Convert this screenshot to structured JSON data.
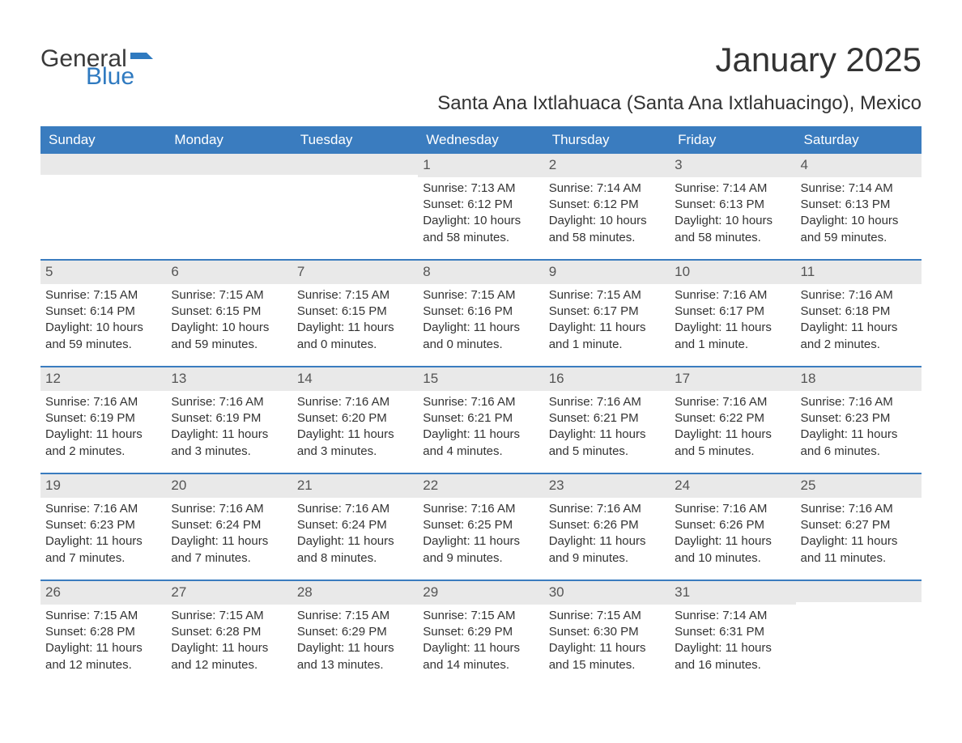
{
  "logo": {
    "general": "General",
    "blue": "Blue"
  },
  "title": "January 2025",
  "subtitle": "Santa Ana Ixtlahuaca (Santa Ana Ixtlahuacingo), Mexico",
  "colors": {
    "header_bg": "#3a7cbf",
    "header_text": "#ffffff",
    "daynum_bg": "#e9e9e9",
    "text": "#333333",
    "logo_blue": "#2f7ac0",
    "week_border": "#3a7cbf",
    "background": "#ffffff"
  },
  "typography": {
    "title_fontsize": 42,
    "subtitle_fontsize": 24,
    "weekday_fontsize": 17,
    "daynum_fontsize": 17,
    "body_fontsize": 15
  },
  "weekdays": [
    "Sunday",
    "Monday",
    "Tuesday",
    "Wednesday",
    "Thursday",
    "Friday",
    "Saturday"
  ],
  "weeks": [
    [
      {
        "n": "",
        "sunrise": "",
        "sunset": "",
        "daylight1": "",
        "daylight2": ""
      },
      {
        "n": "",
        "sunrise": "",
        "sunset": "",
        "daylight1": "",
        "daylight2": ""
      },
      {
        "n": "",
        "sunrise": "",
        "sunset": "",
        "daylight1": "",
        "daylight2": ""
      },
      {
        "n": "1",
        "sunrise": "Sunrise: 7:13 AM",
        "sunset": "Sunset: 6:12 PM",
        "daylight1": "Daylight: 10 hours",
        "daylight2": "and 58 minutes."
      },
      {
        "n": "2",
        "sunrise": "Sunrise: 7:14 AM",
        "sunset": "Sunset: 6:12 PM",
        "daylight1": "Daylight: 10 hours",
        "daylight2": "and 58 minutes."
      },
      {
        "n": "3",
        "sunrise": "Sunrise: 7:14 AM",
        "sunset": "Sunset: 6:13 PM",
        "daylight1": "Daylight: 10 hours",
        "daylight2": "and 58 minutes."
      },
      {
        "n": "4",
        "sunrise": "Sunrise: 7:14 AM",
        "sunset": "Sunset: 6:13 PM",
        "daylight1": "Daylight: 10 hours",
        "daylight2": "and 59 minutes."
      }
    ],
    [
      {
        "n": "5",
        "sunrise": "Sunrise: 7:15 AM",
        "sunset": "Sunset: 6:14 PM",
        "daylight1": "Daylight: 10 hours",
        "daylight2": "and 59 minutes."
      },
      {
        "n": "6",
        "sunrise": "Sunrise: 7:15 AM",
        "sunset": "Sunset: 6:15 PM",
        "daylight1": "Daylight: 10 hours",
        "daylight2": "and 59 minutes."
      },
      {
        "n": "7",
        "sunrise": "Sunrise: 7:15 AM",
        "sunset": "Sunset: 6:15 PM",
        "daylight1": "Daylight: 11 hours",
        "daylight2": "and 0 minutes."
      },
      {
        "n": "8",
        "sunrise": "Sunrise: 7:15 AM",
        "sunset": "Sunset: 6:16 PM",
        "daylight1": "Daylight: 11 hours",
        "daylight2": "and 0 minutes."
      },
      {
        "n": "9",
        "sunrise": "Sunrise: 7:15 AM",
        "sunset": "Sunset: 6:17 PM",
        "daylight1": "Daylight: 11 hours",
        "daylight2": "and 1 minute."
      },
      {
        "n": "10",
        "sunrise": "Sunrise: 7:16 AM",
        "sunset": "Sunset: 6:17 PM",
        "daylight1": "Daylight: 11 hours",
        "daylight2": "and 1 minute."
      },
      {
        "n": "11",
        "sunrise": "Sunrise: 7:16 AM",
        "sunset": "Sunset: 6:18 PM",
        "daylight1": "Daylight: 11 hours",
        "daylight2": "and 2 minutes."
      }
    ],
    [
      {
        "n": "12",
        "sunrise": "Sunrise: 7:16 AM",
        "sunset": "Sunset: 6:19 PM",
        "daylight1": "Daylight: 11 hours",
        "daylight2": "and 2 minutes."
      },
      {
        "n": "13",
        "sunrise": "Sunrise: 7:16 AM",
        "sunset": "Sunset: 6:19 PM",
        "daylight1": "Daylight: 11 hours",
        "daylight2": "and 3 minutes."
      },
      {
        "n": "14",
        "sunrise": "Sunrise: 7:16 AM",
        "sunset": "Sunset: 6:20 PM",
        "daylight1": "Daylight: 11 hours",
        "daylight2": "and 3 minutes."
      },
      {
        "n": "15",
        "sunrise": "Sunrise: 7:16 AM",
        "sunset": "Sunset: 6:21 PM",
        "daylight1": "Daylight: 11 hours",
        "daylight2": "and 4 minutes."
      },
      {
        "n": "16",
        "sunrise": "Sunrise: 7:16 AM",
        "sunset": "Sunset: 6:21 PM",
        "daylight1": "Daylight: 11 hours",
        "daylight2": "and 5 minutes."
      },
      {
        "n": "17",
        "sunrise": "Sunrise: 7:16 AM",
        "sunset": "Sunset: 6:22 PM",
        "daylight1": "Daylight: 11 hours",
        "daylight2": "and 5 minutes."
      },
      {
        "n": "18",
        "sunrise": "Sunrise: 7:16 AM",
        "sunset": "Sunset: 6:23 PM",
        "daylight1": "Daylight: 11 hours",
        "daylight2": "and 6 minutes."
      }
    ],
    [
      {
        "n": "19",
        "sunrise": "Sunrise: 7:16 AM",
        "sunset": "Sunset: 6:23 PM",
        "daylight1": "Daylight: 11 hours",
        "daylight2": "and 7 minutes."
      },
      {
        "n": "20",
        "sunrise": "Sunrise: 7:16 AM",
        "sunset": "Sunset: 6:24 PM",
        "daylight1": "Daylight: 11 hours",
        "daylight2": "and 7 minutes."
      },
      {
        "n": "21",
        "sunrise": "Sunrise: 7:16 AM",
        "sunset": "Sunset: 6:24 PM",
        "daylight1": "Daylight: 11 hours",
        "daylight2": "and 8 minutes."
      },
      {
        "n": "22",
        "sunrise": "Sunrise: 7:16 AM",
        "sunset": "Sunset: 6:25 PM",
        "daylight1": "Daylight: 11 hours",
        "daylight2": "and 9 minutes."
      },
      {
        "n": "23",
        "sunrise": "Sunrise: 7:16 AM",
        "sunset": "Sunset: 6:26 PM",
        "daylight1": "Daylight: 11 hours",
        "daylight2": "and 9 minutes."
      },
      {
        "n": "24",
        "sunrise": "Sunrise: 7:16 AM",
        "sunset": "Sunset: 6:26 PM",
        "daylight1": "Daylight: 11 hours",
        "daylight2": "and 10 minutes."
      },
      {
        "n": "25",
        "sunrise": "Sunrise: 7:16 AM",
        "sunset": "Sunset: 6:27 PM",
        "daylight1": "Daylight: 11 hours",
        "daylight2": "and 11 minutes."
      }
    ],
    [
      {
        "n": "26",
        "sunrise": "Sunrise: 7:15 AM",
        "sunset": "Sunset: 6:28 PM",
        "daylight1": "Daylight: 11 hours",
        "daylight2": "and 12 minutes."
      },
      {
        "n": "27",
        "sunrise": "Sunrise: 7:15 AM",
        "sunset": "Sunset: 6:28 PM",
        "daylight1": "Daylight: 11 hours",
        "daylight2": "and 12 minutes."
      },
      {
        "n": "28",
        "sunrise": "Sunrise: 7:15 AM",
        "sunset": "Sunset: 6:29 PM",
        "daylight1": "Daylight: 11 hours",
        "daylight2": "and 13 minutes."
      },
      {
        "n": "29",
        "sunrise": "Sunrise: 7:15 AM",
        "sunset": "Sunset: 6:29 PM",
        "daylight1": "Daylight: 11 hours",
        "daylight2": "and 14 minutes."
      },
      {
        "n": "30",
        "sunrise": "Sunrise: 7:15 AM",
        "sunset": "Sunset: 6:30 PM",
        "daylight1": "Daylight: 11 hours",
        "daylight2": "and 15 minutes."
      },
      {
        "n": "31",
        "sunrise": "Sunrise: 7:14 AM",
        "sunset": "Sunset: 6:31 PM",
        "daylight1": "Daylight: 11 hours",
        "daylight2": "and 16 minutes."
      },
      {
        "n": "",
        "sunrise": "",
        "sunset": "",
        "daylight1": "",
        "daylight2": ""
      }
    ]
  ]
}
